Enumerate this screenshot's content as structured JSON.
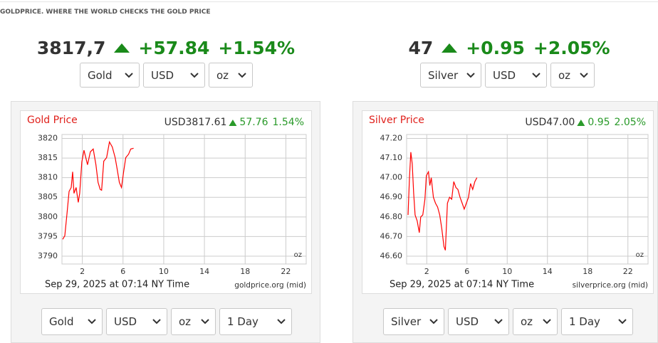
{
  "header": {
    "title": "GOLDPRICE. WHERE THE WORLD CHECKS THE GOLD PRICE"
  },
  "widgets": [
    {
      "price": "3817,7",
      "change": "+57.84",
      "change_pct": "+1.54%",
      "selects": [
        "Gold",
        "USD",
        "oz"
      ]
    },
    {
      "price": "47",
      "change": "+0.95",
      "change_pct": "+2.05%",
      "selects": [
        "Silver",
        "USD",
        "oz"
      ]
    }
  ],
  "chart_data": [
    {
      "type": "line",
      "title": "Gold Price",
      "quote": "USD3817.61",
      "change": "57.76",
      "change_pct": "1.54%",
      "unit_label": "oz",
      "timestamp": "Sep 29, 2025 at 07:14 NY Time",
      "source": "goldprice.org (mid)",
      "x": [
        0.07,
        0.28,
        0.49,
        0.7,
        0.91,
        1.05,
        1.18,
        1.39,
        1.6,
        1.74,
        1.95,
        2.16,
        2.37,
        2.51,
        2.79,
        3.07,
        3.34,
        3.55,
        3.76,
        3.9,
        4.11,
        4.39,
        4.67,
        4.95,
        5.23,
        5.44,
        5.64,
        5.85,
        6.06,
        6.27,
        6.55,
        6.76,
        7.04
      ],
      "series": [
        {
          "color": "#ff0000",
          "values": [
            3794.3,
            3795.2,
            3800.7,
            3806.5,
            3807.5,
            3811.5,
            3806,
            3807.5,
            3803.7,
            3806,
            3814,
            3817,
            3814.8,
            3813.3,
            3816.6,
            3817.3,
            3813.3,
            3808.8,
            3807,
            3806.8,
            3814.2,
            3815.1,
            3819.1,
            3817.8,
            3815.1,
            3812,
            3808.8,
            3807.5,
            3811.5,
            3815.1,
            3816,
            3817.3,
            3817.5
          ]
        }
      ],
      "xlim": [
        0,
        24
      ],
      "xticks": [
        2,
        6,
        10,
        14,
        18,
        22
      ],
      "ylim": [
        3788,
        3821
      ],
      "yticks": [
        3790,
        3795,
        3800,
        3805,
        3810,
        3815,
        3820
      ],
      "grid": true
    },
    {
      "type": "line",
      "title": "Silver Price",
      "quote": "USD47.00",
      "change": "0.95",
      "change_pct": "2.05%",
      "unit_label": "oz",
      "timestamp": "Sep 29, 2025 at 07:14 NY Time",
      "source": "silverprice.org (mid)",
      "x": [
        0.14,
        0.28,
        0.42,
        0.56,
        0.7,
        0.84,
        1.05,
        1.26,
        1.4,
        1.61,
        1.82,
        1.96,
        2.17,
        2.31,
        2.45,
        2.66,
        2.87,
        3.08,
        3.29,
        3.5,
        3.71,
        3.85,
        4.06,
        4.27,
        4.48,
        4.69,
        4.9,
        5.1,
        5.31,
        5.52,
        5.73,
        5.94,
        6.15,
        6.36,
        6.57,
        6.78,
        6.99
      ],
      "series": [
        {
          "color": "#ff0000",
          "values": [
            46.81,
            47.0,
            47.13,
            47.07,
            46.92,
            46.81,
            46.78,
            46.72,
            46.8,
            46.81,
            46.89,
            47.01,
            47.03,
            46.96,
            47.0,
            46.9,
            46.87,
            46.85,
            46.81,
            46.74,
            46.65,
            46.63,
            46.87,
            46.9,
            46.89,
            46.98,
            46.95,
            46.94,
            46.9,
            46.87,
            46.84,
            46.87,
            46.9,
            46.97,
            46.94,
            46.98,
            47.0
          ]
        }
      ],
      "xlim": [
        0,
        24
      ],
      "xticks": [
        2,
        6,
        10,
        14,
        18,
        22
      ],
      "ylim": [
        46.56,
        47.22
      ],
      "yticks": [
        {
          "value": 46.6,
          "label": "46.60"
        },
        {
          "value": 46.7,
          "label": "46.70"
        },
        {
          "value": 46.8,
          "label": "46.80"
        },
        {
          "value": 46.9,
          "label": "46.90"
        },
        {
          "value": 47.0,
          "label": "47.00"
        },
        {
          "value": 47.1,
          "label": "47.10"
        },
        {
          "value": 47.2,
          "label": "47.20"
        }
      ],
      "grid": true
    }
  ],
  "footer_selects": [
    [
      "Gold",
      "USD",
      "oz",
      "1 Day"
    ],
    [
      "Silver",
      "USD",
      "oz",
      "1 Day"
    ]
  ]
}
